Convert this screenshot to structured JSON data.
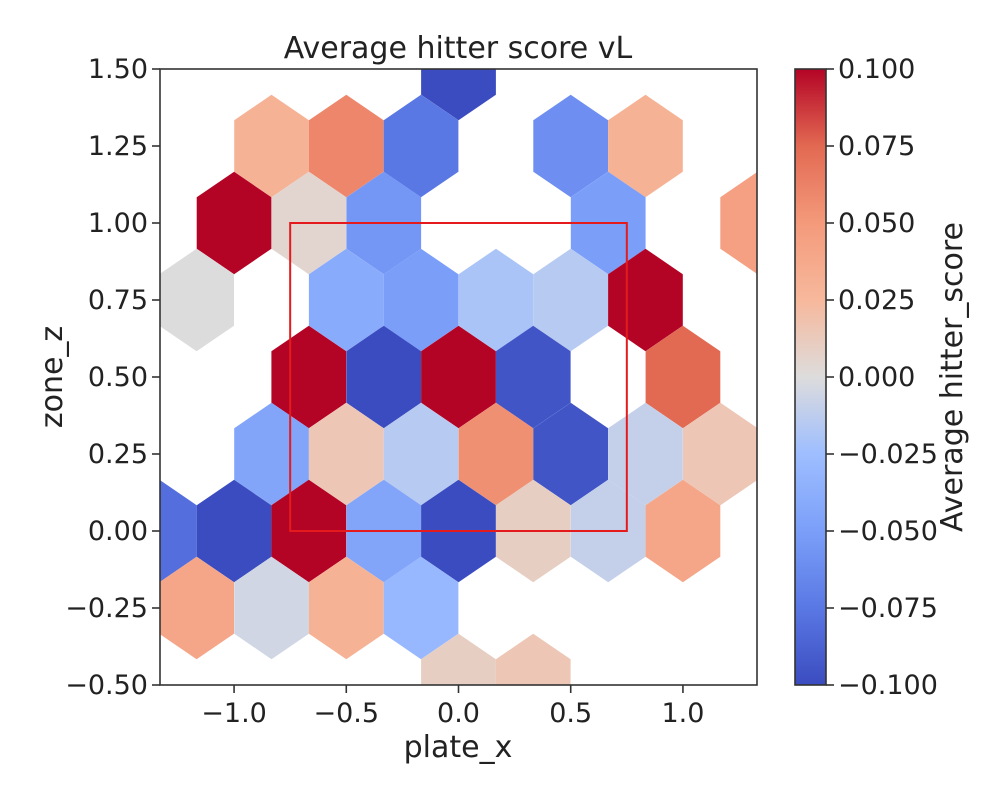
{
  "chart_data": {
    "type": "heatmap",
    "subtype": "hexbin",
    "title": "Average hitter score vL",
    "xlabel": "plate_x",
    "ylabel": "zone_z",
    "xlim": [
      -1.33,
      1.33
    ],
    "ylim": [
      -0.5,
      1.5
    ],
    "xticks": [
      {
        "value": -1.0,
        "label": "−1.0"
      },
      {
        "value": -0.5,
        "label": "−0.5"
      },
      {
        "value": 0.0,
        "label": "0.0"
      },
      {
        "value": 0.5,
        "label": "0.5"
      },
      {
        "value": 1.0,
        "label": "1.0"
      }
    ],
    "yticks": [
      {
        "value": 1.5,
        "label": "1.50"
      },
      {
        "value": 1.25,
        "label": "1.25"
      },
      {
        "value": 1.0,
        "label": "1.00"
      },
      {
        "value": 0.75,
        "label": "0.75"
      },
      {
        "value": 0.5,
        "label": "0.50"
      },
      {
        "value": 0.25,
        "label": "0.25"
      },
      {
        "value": 0.0,
        "label": "0.00"
      },
      {
        "value": -0.25,
        "label": "−0.25"
      },
      {
        "value": -0.5,
        "label": "−0.50"
      }
    ],
    "hex_width": 0.333,
    "hex_row_spacing": 0.25,
    "colormap": "coolwarm",
    "color_range": [
      -0.1,
      0.1
    ],
    "colorbar": {
      "label": "Average hitter_score",
      "ticks": [
        {
          "value": 0.1,
          "label": "0.100"
        },
        {
          "value": 0.075,
          "label": "0.075"
        },
        {
          "value": 0.05,
          "label": "0.050"
        },
        {
          "value": 0.025,
          "label": "0.025"
        },
        {
          "value": 0.0,
          "label": "0.000"
        },
        {
          "value": -0.025,
          "label": "−0.025"
        },
        {
          "value": -0.05,
          "label": "−0.050"
        },
        {
          "value": -0.075,
          "label": "−0.075"
        },
        {
          "value": -0.1,
          "label": "−0.100"
        }
      ]
    },
    "strike_zone": {
      "x": [
        -0.75,
        0.75
      ],
      "z": [
        0.0,
        1.0
      ],
      "color": "#e41a1c"
    },
    "hexes": [
      {
        "x": 0.0,
        "y": 1.5,
        "value": -0.1
      },
      {
        "x": -0.833,
        "y": 1.25,
        "value": 0.03
      },
      {
        "x": -0.5,
        "y": 1.25,
        "value": 0.06
      },
      {
        "x": -0.167,
        "y": 1.25,
        "value": -0.075
      },
      {
        "x": 0.5,
        "y": 1.25,
        "value": -0.06
      },
      {
        "x": 0.833,
        "y": 1.25,
        "value": 0.03
      },
      {
        "x": -1.0,
        "y": 1.0,
        "value": 0.1
      },
      {
        "x": -0.667,
        "y": 1.0,
        "value": 0.005
      },
      {
        "x": -0.333,
        "y": 1.0,
        "value": -0.055
      },
      {
        "x": 0.667,
        "y": 1.0,
        "value": -0.05
      },
      {
        "x": 1.333,
        "y": 1.0,
        "value": 0.045
      },
      {
        "x": -1.167,
        "y": 0.75,
        "value": 0.0
      },
      {
        "x": -0.5,
        "y": 0.75,
        "value": -0.04
      },
      {
        "x": -0.167,
        "y": 0.75,
        "value": -0.05
      },
      {
        "x": 0.167,
        "y": 0.75,
        "value": -0.02
      },
      {
        "x": 0.5,
        "y": 0.75,
        "value": -0.015
      },
      {
        "x": 0.833,
        "y": 0.75,
        "value": 0.1
      },
      {
        "x": -0.667,
        "y": 0.5,
        "value": 0.1
      },
      {
        "x": -0.333,
        "y": 0.5,
        "value": -0.1
      },
      {
        "x": 0.0,
        "y": 0.5,
        "value": 0.1
      },
      {
        "x": 0.333,
        "y": 0.5,
        "value": -0.095
      },
      {
        "x": 1.0,
        "y": 0.5,
        "value": 0.075
      },
      {
        "x": -0.833,
        "y": 0.25,
        "value": -0.045
      },
      {
        "x": -0.5,
        "y": 0.25,
        "value": 0.015
      },
      {
        "x": -0.167,
        "y": 0.25,
        "value": -0.015
      },
      {
        "x": 0.167,
        "y": 0.25,
        "value": 0.055
      },
      {
        "x": 0.5,
        "y": 0.25,
        "value": -0.095
      },
      {
        "x": 0.833,
        "y": 0.25,
        "value": -0.01
      },
      {
        "x": 1.167,
        "y": 0.25,
        "value": 0.015
      },
      {
        "x": -1.333,
        "y": 0.0,
        "value": -0.08
      },
      {
        "x": -1.0,
        "y": 0.0,
        "value": -0.1
      },
      {
        "x": -0.667,
        "y": 0.0,
        "value": 0.1
      },
      {
        "x": -0.333,
        "y": 0.0,
        "value": -0.045
      },
      {
        "x": 0.0,
        "y": 0.0,
        "value": -0.1
      },
      {
        "x": 0.333,
        "y": 0.0,
        "value": 0.01
      },
      {
        "x": 0.667,
        "y": 0.0,
        "value": -0.01
      },
      {
        "x": 1.0,
        "y": 0.0,
        "value": 0.04
      },
      {
        "x": -1.167,
        "y": -0.25,
        "value": 0.04
      },
      {
        "x": -0.833,
        "y": -0.25,
        "value": -0.005
      },
      {
        "x": -0.5,
        "y": -0.25,
        "value": 0.03
      },
      {
        "x": -0.167,
        "y": -0.25,
        "value": -0.03
      },
      {
        "x": 0.0,
        "y": -0.5,
        "value": 0.01
      },
      {
        "x": 0.333,
        "y": -0.5,
        "value": 0.015
      }
    ]
  }
}
